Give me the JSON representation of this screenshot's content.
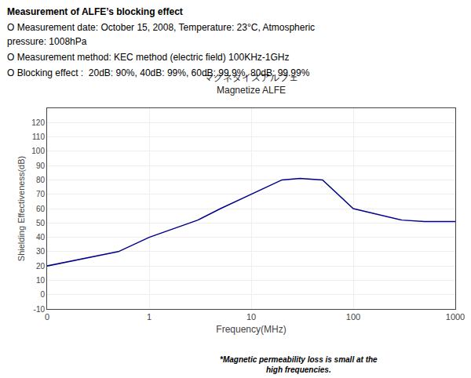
{
  "chart_data": {
    "type": "line",
    "title": "マグネタイズアルフェ",
    "subtitle": "Magnetize ALFE",
    "x_label": "Frequency(MHz)",
    "y_label": "Shielding Effectiveness(dB)",
    "annotations": [
      [
        "Measurement of ALFE’s blocking effect"
      ],
      [
        "O",
        "Measurement date: October 15, 2008, Temperature: 23°C, Atmospheric"
      ],
      [
        "pressure:",
        "1008hPa"
      ],
      [
        "O",
        "Measurement method:",
        "KEC method (electric field) 100KHz-1GHz"
      ],
      [
        "O",
        "Blocking effect",
        ":  20dB: 90%, 40dB: 99%, 60dB: 99.9%, 80dB: 99.99%"
      ],
      [
        "*Magnetic permeability loss is small at the\nhigh frequencies."
      ]
    ],
    "x": [
      0.1,
      0.3,
      0.5,
      1.0,
      3.0,
      5.0,
      10.0,
      20.0,
      30.0,
      50.0,
      100.0,
      300.0,
      500.0,
      700.0,
      1000.0
    ],
    "values": [
      20,
      27,
      30,
      40,
      52,
      60,
      70,
      80,
      81,
      80,
      60,
      52,
      51,
      51,
      51
    ],
    "color": "#00008b",
    "log": "x",
    "xlim": [
      0.1,
      1000
    ],
    "xticks": [
      {
        "value": 0.1,
        "label": "0"
      },
      1,
      10,
      100,
      1000
    ],
    "ylim": [
      -10,
      130
    ],
    "yticks": [
      -10,
      0,
      10,
      20,
      30,
      40,
      50,
      60,
      70,
      80,
      90,
      100,
      110,
      120
    ],
    "grid": true
  }
}
